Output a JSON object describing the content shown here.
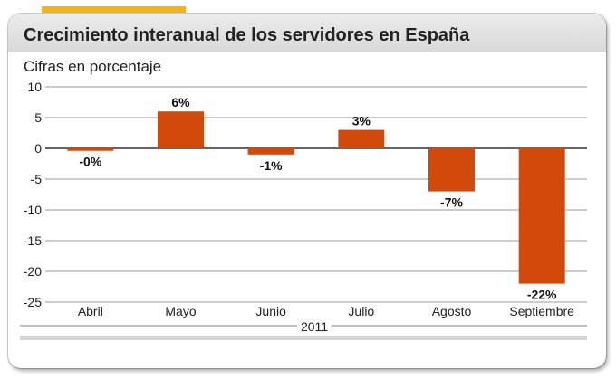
{
  "header": {
    "title": "Crecimiento interanual de los servidores en España",
    "subtitle": "Cifras en porcentaje"
  },
  "colors": {
    "accent": "#f2b316",
    "bar": "#d24a0b",
    "grid": "#777777"
  },
  "chart_data": {
    "type": "bar",
    "title": "Crecimiento interanual de los servidores en España",
    "subtitle": "Cifras en porcentaje",
    "categories": [
      "Abril",
      "Mayo",
      "Junio",
      "Julio",
      "Agosto",
      "Septiembre"
    ],
    "values": [
      -0.4,
      6,
      -1,
      3,
      -7,
      -22
    ],
    "data_labels": [
      "-0%",
      "6%",
      "-1%",
      "3%",
      "-7%",
      "-22%"
    ],
    "x_group_label": "2011",
    "ylim": [
      -25,
      10
    ],
    "yticks": [
      10,
      5,
      0,
      -5,
      -10,
      -15,
      -20,
      -25
    ],
    "ytick_labels": [
      "10",
      "5",
      "0",
      "-5",
      "-10",
      "-15",
      "-20",
      "-25"
    ],
    "grid": true,
    "legend": "none"
  }
}
